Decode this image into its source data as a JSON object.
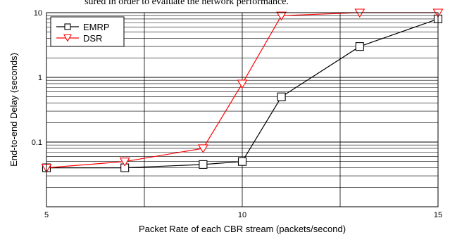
{
  "caption_fragment": "sured in order to evaluate the network performance.",
  "chart_data": {
    "type": "line",
    "title": "",
    "xlabel": "Packet Rate of each CBR stream (packets/second)",
    "ylabel": "End-to-end Delay (seconds)",
    "xlim": [
      5,
      15
    ],
    "ylim": [
      0.01,
      10
    ],
    "yscale": "log",
    "grid": true,
    "legend_position": "top-left",
    "x_ticks": [
      5,
      10,
      15
    ],
    "y_ticks": [
      0.1,
      1,
      10
    ],
    "y_tick_labels": [
      "0.1",
      "1",
      "10"
    ],
    "series": [
      {
        "name": "EMRP",
        "color": "#000000",
        "marker": "square",
        "x": [
          5,
          7,
          9,
          10,
          11,
          13,
          15
        ],
        "y": [
          0.04,
          0.04,
          0.045,
          0.05,
          0.5,
          3.0,
          8.0
        ]
      },
      {
        "name": "DSR",
        "color": "#ff0000",
        "marker": "triangle-down",
        "x": [
          5,
          7,
          9,
          10,
          11,
          13,
          15
        ],
        "y": [
          0.04,
          0.05,
          0.08,
          0.8,
          9.0,
          10.0,
          10.0
        ]
      }
    ]
  }
}
